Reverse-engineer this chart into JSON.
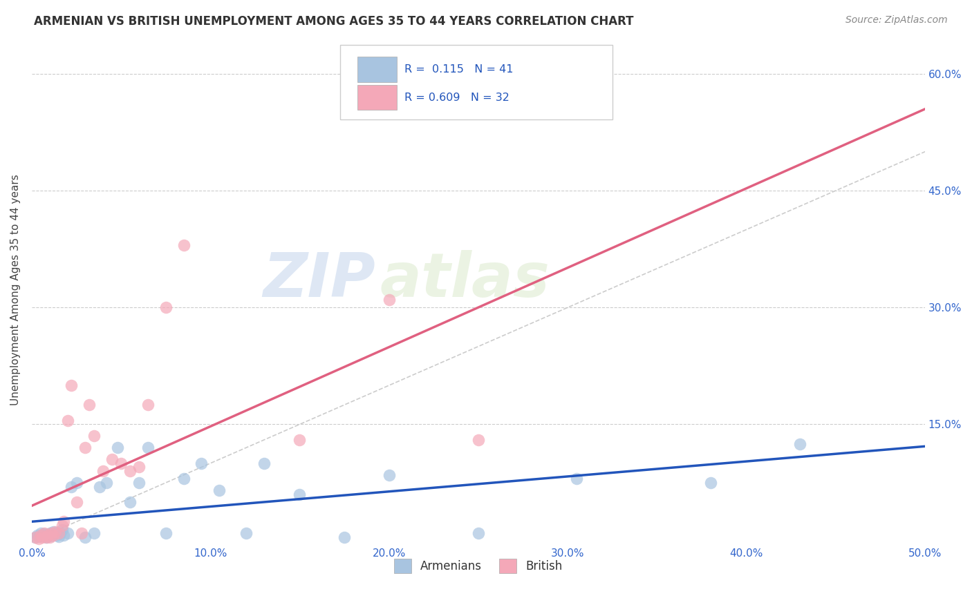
{
  "title": "ARMENIAN VS BRITISH UNEMPLOYMENT AMONG AGES 35 TO 44 YEARS CORRELATION CHART",
  "source": "Source: ZipAtlas.com",
  "ylabel": "Unemployment Among Ages 35 to 44 years",
  "xlim": [
    0.0,
    0.5
  ],
  "ylim": [
    -0.005,
    0.65
  ],
  "xtick_labels": [
    "0.0%",
    "10.0%",
    "20.0%",
    "30.0%",
    "40.0%",
    "50.0%"
  ],
  "xtick_vals": [
    0.0,
    0.1,
    0.2,
    0.3,
    0.4,
    0.5
  ],
  "ytick_labels": [
    "15.0%",
    "30.0%",
    "45.0%",
    "60.0%"
  ],
  "ytick_vals": [
    0.15,
    0.3,
    0.45,
    0.6
  ],
  "grid_color": "#cccccc",
  "background_color": "#ffffff",
  "armenian_color": "#a8c4e0",
  "british_color": "#f4a8b8",
  "armenian_line_color": "#2255bb",
  "british_line_color": "#e06080",
  "diagonal_color": "#cccccc",
  "R_armenian": 0.115,
  "N_armenian": 41,
  "R_british": 0.609,
  "N_british": 32,
  "legend_armenian": "Armenians",
  "legend_british": "British",
  "watermark_zip": "ZIP",
  "watermark_atlas": "atlas",
  "armenian_x": [
    0.002,
    0.003,
    0.004,
    0.005,
    0.006,
    0.007,
    0.008,
    0.009,
    0.01,
    0.011,
    0.012,
    0.013,
    0.014,
    0.015,
    0.016,
    0.017,
    0.018,
    0.02,
    0.022,
    0.025,
    0.03,
    0.035,
    0.038,
    0.042,
    0.048,
    0.055,
    0.06,
    0.065,
    0.075,
    0.085,
    0.095,
    0.105,
    0.12,
    0.13,
    0.15,
    0.175,
    0.2,
    0.25,
    0.305,
    0.38,
    0.43
  ],
  "armenian_y": [
    0.005,
    0.008,
    0.006,
    0.01,
    0.007,
    0.009,
    0.005,
    0.008,
    0.01,
    0.007,
    0.012,
    0.01,
    0.008,
    0.006,
    0.01,
    0.015,
    0.008,
    0.01,
    0.07,
    0.075,
    0.005,
    0.01,
    0.07,
    0.075,
    0.12,
    0.05,
    0.075,
    0.12,
    0.01,
    0.08,
    0.1,
    0.065,
    0.01,
    0.1,
    0.06,
    0.005,
    0.085,
    0.01,
    0.08,
    0.075,
    0.125
  ],
  "british_x": [
    0.002,
    0.004,
    0.005,
    0.006,
    0.007,
    0.008,
    0.009,
    0.01,
    0.011,
    0.012,
    0.013,
    0.015,
    0.017,
    0.018,
    0.02,
    0.022,
    0.025,
    0.028,
    0.03,
    0.032,
    0.035,
    0.04,
    0.045,
    0.05,
    0.055,
    0.06,
    0.065,
    0.075,
    0.085,
    0.15,
    0.2,
    0.25
  ],
  "british_y": [
    0.005,
    0.003,
    0.008,
    0.005,
    0.01,
    0.005,
    0.008,
    0.005,
    0.01,
    0.008,
    0.012,
    0.01,
    0.02,
    0.025,
    0.155,
    0.2,
    0.05,
    0.01,
    0.12,
    0.175,
    0.135,
    0.09,
    0.105,
    0.1,
    0.09,
    0.095,
    0.175,
    0.3,
    0.38,
    0.13,
    0.31,
    0.13
  ]
}
